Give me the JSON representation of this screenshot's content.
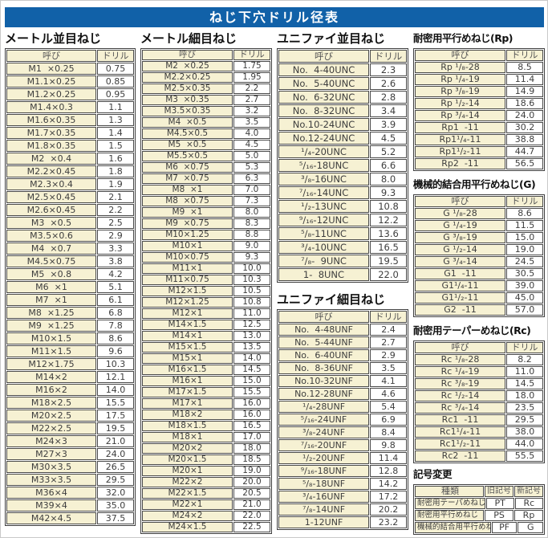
{
  "title": "ねじ下穴ドリル径表",
  "colors": {
    "title_bg": "#1161a8",
    "cell_cream": "#f6f1d3",
    "border": "#3f3f3f"
  },
  "tables": {
    "metric_coarse": {
      "title": "メートル並目ねじ",
      "headers": [
        "呼び",
        "ドリル"
      ],
      "rows": [
        [
          "M1  ×0.25",
          "0.75"
        ],
        [
          "M1.1×0.25",
          "0.85"
        ],
        [
          "M1.2×0.25",
          "0.95"
        ],
        [
          "M1.4×0.3",
          "1.1"
        ],
        [
          "M1.6×0.35",
          "1.3"
        ],
        [
          "M1.7×0.35",
          "1.4"
        ],
        [
          "M1.8×0.35",
          "1.5"
        ],
        [
          "M2  ×0.4",
          "1.6"
        ],
        [
          "M2.2×0.45",
          "1.8"
        ],
        [
          "M2.3×0.4",
          "1.9"
        ],
        [
          "M2.5×0.45",
          "2.1"
        ],
        [
          "M2.6×0.45",
          "2.2"
        ],
        [
          "M3  ×0.5",
          "2.5"
        ],
        [
          "M3.5×0.6",
          "2.9"
        ],
        [
          "M4  ×0.7",
          "3.3"
        ],
        [
          "M4.5×0.75",
          "3.8"
        ],
        [
          "M5  ×0.8",
          "4.2"
        ],
        [
          "M6  ×1",
          "5.1"
        ],
        [
          "M7  ×1",
          "6.1"
        ],
        [
          "M8  ×1.25",
          "6.8"
        ],
        [
          "M9  ×1.25",
          "7.8"
        ],
        [
          "M10×1.5",
          "8.6"
        ],
        [
          "M11×1.5",
          "9.6"
        ],
        [
          "M12×1.75",
          "10.3"
        ],
        [
          "M14×2",
          "12.1"
        ],
        [
          "M16×2",
          "14.0"
        ],
        [
          "M18×2.5",
          "15.5"
        ],
        [
          "M20×2.5",
          "17.5"
        ],
        [
          "M22×2.5",
          "19.5"
        ],
        [
          "M24×3",
          "21.0"
        ],
        [
          "M27×3",
          "24.0"
        ],
        [
          "M30×3.5",
          "26.5"
        ],
        [
          "M33×3.5",
          "29.5"
        ],
        [
          "M36×4",
          "32.0"
        ],
        [
          "M39×4",
          "35.0"
        ],
        [
          "M42×4.5",
          "37.5"
        ]
      ]
    },
    "metric_fine": {
      "title": "メートル細目ねじ",
      "headers": [
        "呼び",
        "ドリル"
      ],
      "rows": [
        [
          "M2  ×0.25",
          "1.75"
        ],
        [
          "M2.2×0.25",
          "1.95"
        ],
        [
          "M2.5×0.35",
          "2.2"
        ],
        [
          "M3  ×0.35",
          "2.7"
        ],
        [
          "M3.5×0.35",
          "3.2"
        ],
        [
          "M4  ×0.5",
          "3.5"
        ],
        [
          "M4.5×0.5",
          "4.0"
        ],
        [
          "M5  ×0.5",
          "4.5"
        ],
        [
          "M5.5×0.5",
          "5.0"
        ],
        [
          "M6  ×0.75",
          "5.3"
        ],
        [
          "M7  ×0.75",
          "6.3"
        ],
        [
          "M8  ×1",
          "7.0"
        ],
        [
          "M8  ×0.75",
          "7.3"
        ],
        [
          "M9  ×1",
          "8.0"
        ],
        [
          "M9  ×0.75",
          "8.3"
        ],
        [
          "M10×1.25",
          "8.8"
        ],
        [
          "M10×1",
          "9.0"
        ],
        [
          "M10×0.75",
          "9.3"
        ],
        [
          "M11×1",
          "10.0"
        ],
        [
          "M11×0.75",
          "10.3"
        ],
        [
          "M12×1.5",
          "10.5"
        ],
        [
          "M12×1.25",
          "10.8"
        ],
        [
          "M12×1",
          "11.0"
        ],
        [
          "M14×1.5",
          "12.5"
        ],
        [
          "M14×1",
          "13.0"
        ],
        [
          "M15×1.5",
          "13.5"
        ],
        [
          "M15×1",
          "14.0"
        ],
        [
          "M16×1.5",
          "14.5"
        ],
        [
          "M16×1",
          "15.0"
        ],
        [
          "M17×1.5",
          "15.5"
        ],
        [
          "M17×1",
          "16.0"
        ],
        [
          "M18×2",
          "16.0"
        ],
        [
          "M18×1.5",
          "16.5"
        ],
        [
          "M18×1",
          "17.0"
        ],
        [
          "M20×2",
          "18.0"
        ],
        [
          "M20×1.5",
          "18.5"
        ],
        [
          "M20×1",
          "19.0"
        ],
        [
          "M22×2",
          "20.0"
        ],
        [
          "M22×1.5",
          "20.5"
        ],
        [
          "M22×1",
          "21.0"
        ],
        [
          "M24×2",
          "22.0"
        ],
        [
          "M24×1.5",
          "22.5"
        ]
      ]
    },
    "unified_coarse": {
      "title": "ユニファイ並目ねじ",
      "headers": [
        "呼び",
        "ドリル"
      ],
      "rows": [
        [
          "No.  4-40UNC",
          "2.3"
        ],
        [
          "No.  5-40UNC",
          "2.6"
        ],
        [
          "No.  6-32UNC",
          "2.8"
        ],
        [
          "No.  8-32UNC",
          "3.4"
        ],
        [
          "No.10-24UNC",
          "3.9"
        ],
        [
          "No.12-24UNC",
          "4.5"
        ],
        [
          "¹/₄-20UNC",
          "5.2"
        ],
        [
          "⁵/₁₆-18UNC",
          "6.6"
        ],
        [
          "³/₈-16UNC",
          "8.0"
        ],
        [
          "⁷/₁₆-14UNC",
          "9.3"
        ],
        [
          "¹/₂-13UNC",
          "10.8"
        ],
        [
          "⁹/₁₆-12UNC",
          "12.2"
        ],
        [
          "⁵/₈-11UNC",
          "13.6"
        ],
        [
          "³/₄-10UNC",
          "16.5"
        ],
        [
          "⁷/₈-  9UNC",
          "19.5"
        ],
        [
          "1-  8UNC",
          "22.0"
        ]
      ]
    },
    "unified_fine": {
      "title": "ユニファイ細目ねじ",
      "headers": [
        "呼び",
        "ドリル"
      ],
      "rows": [
        [
          "No.  4-48UNF",
          "2.4"
        ],
        [
          "No.  5-44UNF",
          "2.7"
        ],
        [
          "No.  6-40UNF",
          "2.9"
        ],
        [
          "No.  8-36UNF",
          "3.5"
        ],
        [
          "No.10-32UNF",
          "4.1"
        ],
        [
          "No.12-28UNF",
          "4.6"
        ],
        [
          "¹/₄-28UNF",
          "5.4"
        ],
        [
          "⁵/₁₆-24UNF",
          "6.9"
        ],
        [
          "³/₈-24UNF",
          "8.4"
        ],
        [
          "⁷/₁₆-20UNF",
          "9.8"
        ],
        [
          "¹/₂-20UNF",
          "11.4"
        ],
        [
          "⁹/₁₆-18UNF",
          "12.8"
        ],
        [
          "⁵/₈-18UNF",
          "14.2"
        ],
        [
          "³/₄-16UNF",
          "17.2"
        ],
        [
          "⁷/₈-14UNF",
          "20.2"
        ],
        [
          "1-12UNF",
          "23.2"
        ]
      ]
    },
    "rp": {
      "title": "耐密用平行めねじ(Rp)",
      "headers": [
        "呼び",
        "ドリル"
      ],
      "rows": [
        [
          "Rp ¹/₈-28",
          "8.5"
        ],
        [
          "Rp ¹/₄-19",
          "11.4"
        ],
        [
          "Rp ³/₈-19",
          "14.9"
        ],
        [
          "Rp ¹/₂-14",
          "18.6"
        ],
        [
          "Rp ³/₄-14",
          "24.0"
        ],
        [
          "Rp1  -11",
          "30.2"
        ],
        [
          "Rp1¹/₄-11",
          "38.8"
        ],
        [
          "Rp1¹/₂-11",
          "44.7"
        ],
        [
          "Rp2  -11",
          "56.5"
        ]
      ]
    },
    "g": {
      "title": "機械的結合用平行めねじ(G)",
      "headers": [
        "呼び",
        "ドリル"
      ],
      "rows": [
        [
          "G ¹/₈-28",
          "8.6"
        ],
        [
          "G ¹/₄-19",
          "11.5"
        ],
        [
          "G ³/₈-19",
          "15.0"
        ],
        [
          "G ¹/₂-14",
          "19.0"
        ],
        [
          "G ³/₄-14",
          "24.5"
        ],
        [
          "G1  -11",
          "30.5"
        ],
        [
          "G1¹/₄-11",
          "39.0"
        ],
        [
          "G1¹/₂-11",
          "45.0"
        ],
        [
          "G2  -11",
          "57.0"
        ]
      ]
    },
    "rc": {
      "title": "耐密用テーパーめねじ(Rc)",
      "headers": [
        "呼び",
        "ドリル"
      ],
      "rows": [
        [
          "Rc ¹/₈-28",
          "8.2"
        ],
        [
          "Rc ¹/₄-19",
          "11.0"
        ],
        [
          "Rc ³/₈-19",
          "14.5"
        ],
        [
          "Rc ¹/₂-14",
          "18.0"
        ],
        [
          "Rc ³/₄-14",
          "23.5"
        ],
        [
          "Rc1  -11",
          "29.5"
        ],
        [
          "Rc1¹/₄-11",
          "38.0"
        ],
        [
          "Rc1¹/₂-11",
          "44.0"
        ],
        [
          "Rc2  -11",
          "55.5"
        ]
      ]
    },
    "symbol_change": {
      "title": "記号変更",
      "headers": [
        "種類",
        "旧記号",
        "新記号"
      ],
      "rows": [
        [
          "耐密用テーパめねじ",
          "PT",
          "Rc"
        ],
        [
          "耐密用平行めねじ",
          "PS",
          "Rp"
        ],
        [
          "機械的結合用平行めねじ",
          "PF",
          "G"
        ]
      ]
    }
  }
}
